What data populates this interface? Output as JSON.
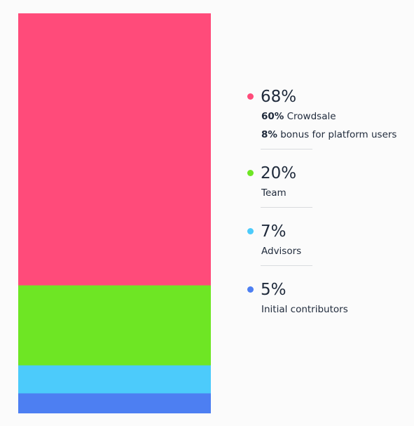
{
  "chart_data": {
    "type": "bar",
    "stacked": true,
    "orientation": "vertical",
    "unit": "%",
    "total": 100,
    "grid": false,
    "legend_position": "right",
    "series": [
      {
        "value": 68,
        "percent_label": "68%",
        "color": "#ff4b7a",
        "details": [
          {
            "bold": "60%",
            "text": " Crowdsale"
          },
          {
            "bold": "8%",
            "text": " bonus for platform users"
          }
        ]
      },
      {
        "value": 20,
        "percent_label": "20%",
        "color": "#6ee624",
        "details": [
          {
            "bold": "",
            "text": "Team"
          }
        ]
      },
      {
        "value": 7,
        "percent_label": "7%",
        "color": "#4ccbfb",
        "details": [
          {
            "bold": "",
            "text": "Advisors"
          }
        ]
      },
      {
        "value": 5,
        "percent_label": "5%",
        "color": "#4d7ff2",
        "details": [
          {
            "bold": "",
            "text": "Initial contributors"
          }
        ]
      }
    ]
  }
}
